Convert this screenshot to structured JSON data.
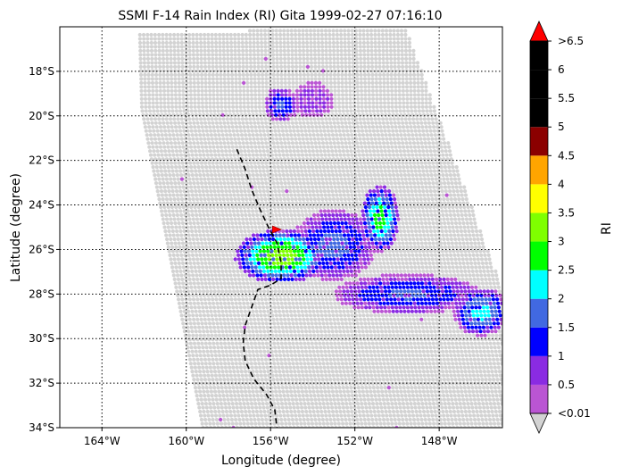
{
  "chart_data": {
    "type": "heatmap",
    "title": "SSMI F-14 Rain Index (RI) Gita 1999-02-27 07:16:10",
    "xlabel": "Longitude (degree)",
    "ylabel": "Latitude (degree)",
    "xlim": [
      -166.0,
      -145.0
    ],
    "ylim": [
      -34.0,
      -16.0
    ],
    "x_ticks": [
      {
        "value": -164,
        "label": "164°W"
      },
      {
        "value": -160,
        "label": "160°W"
      },
      {
        "value": -156,
        "label": "156°W"
      },
      {
        "value": -152,
        "label": "152°W"
      },
      {
        "value": -148,
        "label": "148°W"
      }
    ],
    "y_ticks": [
      {
        "value": -18,
        "label": "18°S"
      },
      {
        "value": -20,
        "label": "20°S"
      },
      {
        "value": -22,
        "label": "22°S"
      },
      {
        "value": -24,
        "label": "24°S"
      },
      {
        "value": -26,
        "label": "26°S"
      },
      {
        "value": -28,
        "label": "28°S"
      },
      {
        "value": -30,
        "label": "30°S"
      },
      {
        "value": -32,
        "label": "32°S"
      },
      {
        "value": -34,
        "label": "34°S"
      }
    ],
    "grid": true,
    "colorbar": {
      "label": "RI",
      "tick_labels": [
        ">6.5",
        "6",
        "5.5",
        "5",
        "4.5",
        "4",
        "3.5",
        "3",
        "2.5",
        "2",
        "1.5",
        "1",
        "0.5",
        "<0.01"
      ],
      "bins": [
        {
          "range": "<0.01",
          "color": "#d3d3d3"
        },
        {
          "range": "0.01-0.5",
          "color": "#ba55d3"
        },
        {
          "range": "0.5-1",
          "color": "#8a2be2"
        },
        {
          "range": "1-1.5",
          "color": "#0000ff"
        },
        {
          "range": "1.5-2",
          "color": "#4169e1"
        },
        {
          "range": "2-2.5",
          "color": "#00ffff"
        },
        {
          "range": "2.5-3",
          "color": "#00ff00"
        },
        {
          "range": "3-3.5",
          "color": "#7fff00"
        },
        {
          "range": "3.5-4",
          "color": "#ffff00"
        },
        {
          "range": "4-4.5",
          "color": "#ffa500"
        },
        {
          "range": "4.5-5",
          "color": "#8b0000"
        },
        {
          "range": "5-5.5",
          "color": "#000000"
        },
        {
          "range": "5.5-6",
          "color": "#000000"
        },
        {
          "range": "6-6.5",
          "color": "#000000"
        },
        {
          "range": ">6.5",
          "color": "#ff0000"
        }
      ]
    },
    "swath": {
      "top_left": [
        -162.2,
        -16.3
      ],
      "top_right": [
        -149.6,
        -16.0
      ],
      "right_bottom": [
        -145.0,
        -27.8
      ],
      "bottom_right": [
        -145.0,
        -34.0
      ],
      "bottom_left": [
        -159.2,
        -34.0
      ],
      "left_mid": [
        -162.1,
        -19.7
      ]
    },
    "rain_regions": [
      {
        "name": "central band core",
        "center": [
          -155.5,
          -26.3
        ],
        "radii": [
          2.2,
          1.2
        ],
        "peak": 3.3
      },
      {
        "name": "central band east",
        "center": [
          -153.0,
          -25.8
        ],
        "radii": [
          2.0,
          1.6
        ],
        "peak": 1.7
      },
      {
        "name": "northeast cell",
        "center": [
          -150.8,
          -24.6
        ],
        "radii": [
          0.9,
          1.5
        ],
        "peak": 2.8
      },
      {
        "name": "southeast band",
        "center": [
          -149.5,
          -28.0
        ],
        "radii": [
          3.5,
          0.9
        ],
        "peak": 1.6
      },
      {
        "name": "far east cell",
        "center": [
          -146.0,
          -28.8
        ],
        "radii": [
          1.3,
          1.1
        ],
        "peak": 2.2
      },
      {
        "name": "north cell",
        "center": [
          -155.5,
          -19.5
        ],
        "radii": [
          0.8,
          0.8
        ],
        "peak": 1.6
      },
      {
        "name": "north east patch",
        "center": [
          -154.0,
          -19.3
        ],
        "radii": [
          1.0,
          0.8
        ],
        "peak": 0.9
      }
    ],
    "storm_track": [
      [
        -157.6,
        -21.5
      ],
      [
        -157.2,
        -22.4
      ],
      [
        -156.9,
        -23.3
      ],
      [
        -156.5,
        -24.2
      ],
      [
        -156.1,
        -25.0
      ],
      [
        -155.7,
        -25.7
      ],
      [
        -155.5,
        -26.6
      ],
      [
        -155.5,
        -27.3
      ],
      [
        -156.0,
        -27.6
      ],
      [
        -156.6,
        -27.8
      ],
      [
        -156.9,
        -28.6
      ],
      [
        -157.2,
        -29.4
      ],
      [
        -157.3,
        -30.2
      ],
      [
        -157.2,
        -31.0
      ],
      [
        -156.8,
        -31.8
      ],
      [
        -156.2,
        -32.5
      ],
      [
        -155.8,
        -33.2
      ],
      [
        -155.7,
        -34.0
      ]
    ],
    "storm_marker": [
      -155.7,
      -25.1
    ]
  }
}
